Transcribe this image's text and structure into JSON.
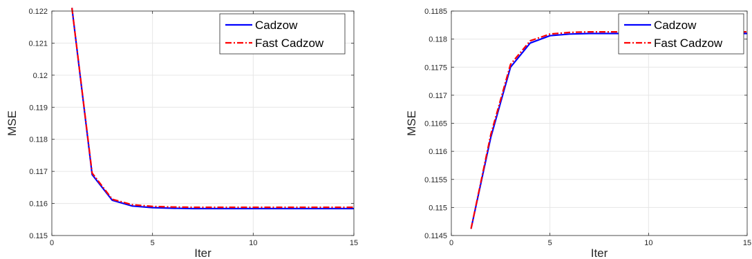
{
  "chart_data": [
    {
      "type": "line",
      "title": "",
      "xlabel": "Iter",
      "ylabel": "MSE",
      "xlim": [
        0,
        15
      ],
      "ylim": [
        0.115,
        0.122
      ],
      "xticks": [
        0,
        5,
        10,
        15
      ],
      "yticks": [
        0.115,
        0.116,
        0.117,
        0.118,
        0.119,
        0.12,
        0.121,
        0.122
      ],
      "ytick_labels": [
        "0.115",
        "0.116",
        "0.117",
        "0.118",
        "0.119",
        "0.12",
        "0.121",
        "0.122"
      ],
      "grid": true,
      "legend_position": "top-right",
      "x": [
        1,
        2,
        3,
        4,
        5,
        6,
        7,
        8,
        9,
        10,
        11,
        12,
        13,
        14,
        15
      ],
      "series": [
        {
          "name": "Cadzow",
          "color": "#0000ff",
          "style": "solid",
          "values": [
            0.1221,
            0.1169,
            0.1161,
            0.11592,
            0.11587,
            0.11585,
            0.11584,
            0.11584,
            0.11584,
            0.11584,
            0.11584,
            0.11584,
            0.11584,
            0.11584,
            0.11584
          ]
        },
        {
          "name": "Fast Cadzow",
          "color": "#ff0000",
          "style": "dashdot",
          "values": [
            0.1221,
            0.11695,
            0.11613,
            0.11596,
            0.11591,
            0.11589,
            0.11588,
            0.11588,
            0.11588,
            0.11588,
            0.11588,
            0.11588,
            0.11588,
            0.11588,
            0.11588
          ]
        }
      ]
    },
    {
      "type": "line",
      "title": "",
      "xlabel": "Iter",
      "ylabel": "MSE",
      "xlim": [
        0,
        15
      ],
      "ylim": [
        0.1145,
        0.1185
      ],
      "xticks": [
        0,
        5,
        10,
        15
      ],
      "yticks": [
        0.1145,
        0.115,
        0.1155,
        0.116,
        0.1165,
        0.117,
        0.1175,
        0.118,
        0.1185
      ],
      "ytick_labels": [
        "0.1145",
        "0.115",
        "0.1155",
        "0.116",
        "0.1165",
        "0.117",
        "0.1175",
        "0.118",
        "0.1185"
      ],
      "grid": true,
      "legend_position": "top-right",
      "x": [
        1,
        2,
        3,
        4,
        5,
        6,
        7,
        8,
        9,
        10,
        11,
        12,
        13,
        14,
        15
      ],
      "series": [
        {
          "name": "Cadzow",
          "color": "#0000ff",
          "style": "solid",
          "values": [
            0.11462,
            0.11625,
            0.1175,
            0.11793,
            0.11806,
            0.11809,
            0.1181,
            0.1181,
            0.1181,
            0.1181,
            0.1181,
            0.1181,
            0.1181,
            0.1181,
            0.1181
          ]
        },
        {
          "name": "Fast Cadzow",
          "color": "#ff0000",
          "style": "dashdot",
          "values": [
            0.11462,
            0.1163,
            0.11755,
            0.11797,
            0.11809,
            0.11812,
            0.11813,
            0.11813,
            0.11813,
            0.11813,
            0.11813,
            0.11813,
            0.11813,
            0.11813,
            0.11813
          ]
        }
      ]
    }
  ]
}
